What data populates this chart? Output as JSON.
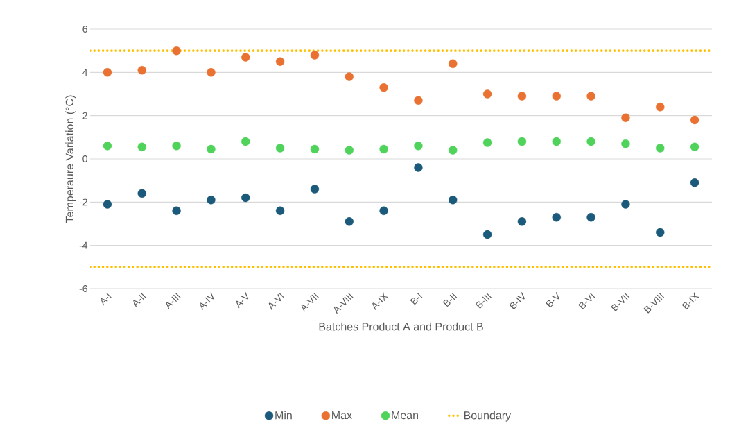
{
  "chart_data": {
    "type": "scatter",
    "xlabel": "Batches Product A and Product B",
    "ylabel": "Temperaure Variation (°C)",
    "categories": [
      "A-I",
      "A-II",
      "A-III",
      "A-IV",
      "A-V",
      "A-VI",
      "A-VII",
      "A-VIII",
      "A-IX",
      "B-I",
      "B-II",
      "B-III",
      "B-IV",
      "B-V",
      "B-VI",
      "B-VII",
      "B-VIII",
      "B-IX"
    ],
    "series": [
      {
        "name": "Min",
        "color": "#1b5a7a",
        "values": [
          -2.1,
          -1.6,
          -2.4,
          -1.9,
          -1.8,
          -2.4,
          -1.4,
          -2.9,
          -2.4,
          -0.4,
          -1.9,
          -3.5,
          -2.9,
          -2.7,
          -2.7,
          -2.1,
          -3.4,
          -1.1
        ]
      },
      {
        "name": "Max",
        "color": "#e97132",
        "values": [
          4.0,
          4.1,
          5.0,
          4.0,
          4.7,
          4.5,
          4.8,
          3.8,
          3.3,
          2.7,
          4.4,
          3.0,
          2.9,
          2.9,
          2.9,
          1.9,
          2.4,
          1.8
        ]
      },
      {
        "name": "Mean",
        "color": "#4fd35a",
        "values": [
          0.6,
          0.55,
          0.6,
          0.45,
          0.8,
          0.5,
          0.45,
          0.4,
          0.45,
          0.6,
          0.4,
          0.75,
          0.8,
          0.8,
          0.8,
          0.7,
          0.5,
          0.55
        ]
      }
    ],
    "ref_lines": [
      {
        "axis": "y",
        "value": 5,
        "label": "Boundary",
        "color": "#ffc000",
        "line_style": "dotted"
      },
      {
        "axis": "y",
        "value": -5,
        "color": "#ffc000",
        "line_style": "dotted"
      }
    ],
    "ylim": [
      -6,
      6
    ],
    "yticks": [
      -6,
      -4,
      -2,
      0,
      2,
      4,
      6
    ],
    "grid": "y",
    "legend": "bottom",
    "marker": "circle"
  }
}
